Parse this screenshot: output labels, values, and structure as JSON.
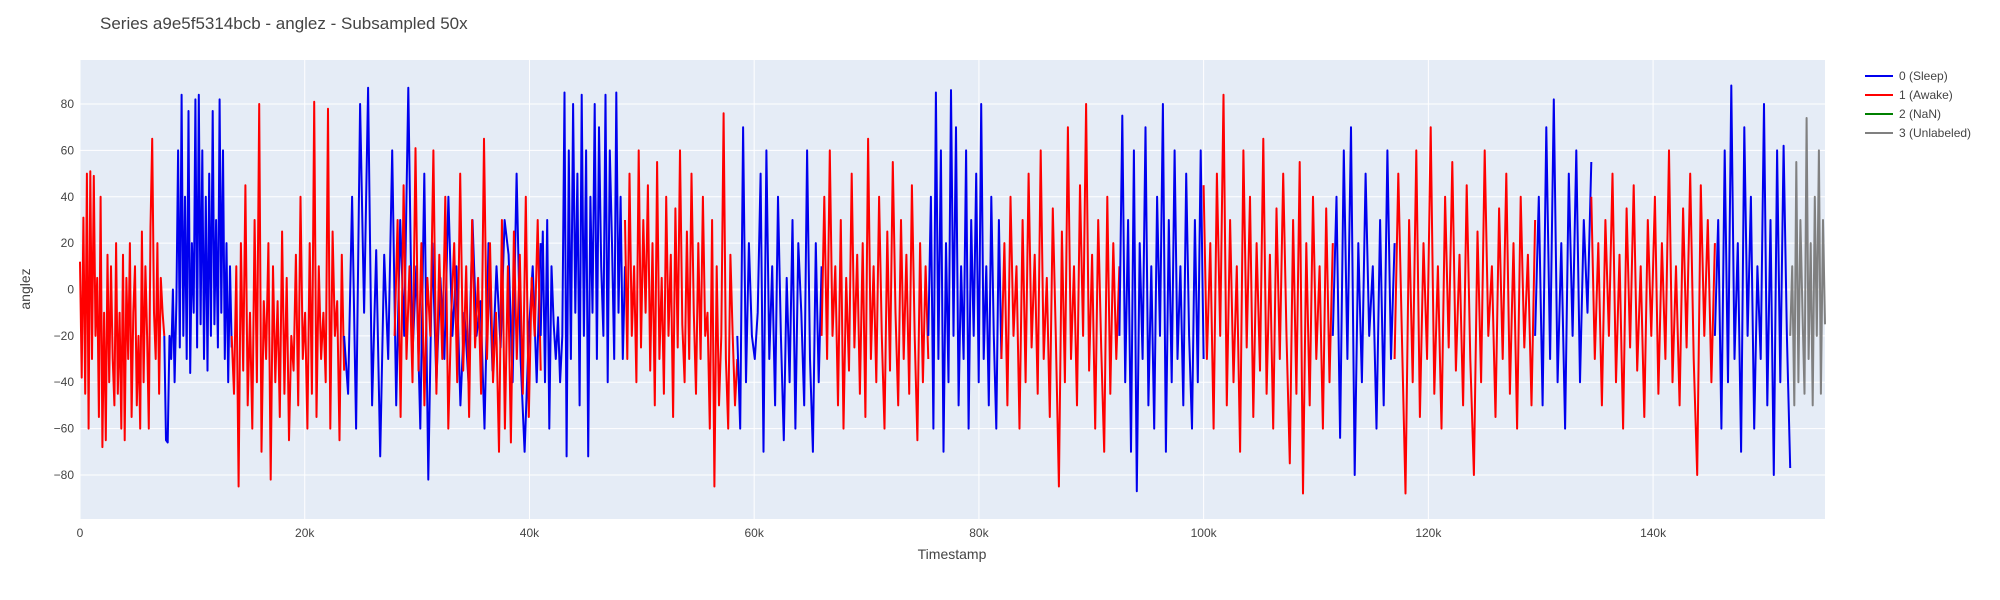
{
  "chart_data": {
    "type": "line",
    "title": "Series a9e5f5314bcb - anglez - Subsampled 50x",
    "xlabel": "Timestamp",
    "ylabel": "anglez",
    "xlim": [
      0,
      155300
    ],
    "ylim": [
      -99,
      99
    ],
    "x_ticks": [
      0,
      20000,
      40000,
      60000,
      80000,
      100000,
      120000,
      140000
    ],
    "x_tick_labels": [
      "0",
      "20k",
      "40k",
      "60k",
      "80k",
      "100k",
      "120k",
      "140k"
    ],
    "y_ticks": [
      -80,
      -60,
      -40,
      -20,
      0,
      20,
      40,
      60,
      80
    ],
    "y_tick_labels": [
      "−80",
      "−60",
      "−40",
      "−20",
      "0",
      "20",
      "40",
      "60",
      "80"
    ],
    "grid": true,
    "legend_position": "top-right-outside",
    "series": [
      {
        "name": "0 (Sleep)",
        "color": "#0000ee"
      },
      {
        "name": "1 (Awake)",
        "color": "#ff0000"
      },
      {
        "name": "2 (NaN)",
        "color": "#008000"
      },
      {
        "name": "3 (Unlabeled)",
        "color": "#808080"
      }
    ],
    "segments": [
      {
        "series": 1,
        "x_start": 0,
        "x_end": 7500,
        "y": [
          12,
          -38,
          31,
          -45,
          50,
          -60,
          51,
          -30,
          49,
          -20,
          5,
          -55,
          40,
          -68,
          -10,
          -65,
          15,
          -40,
          10,
          -30,
          -50,
          20,
          -45,
          -10,
          -60,
          15,
          -65,
          5,
          -30,
          20,
          -55,
          -10,
          10,
          -50,
          -20,
          -60,
          25,
          -40,
          10,
          -20,
          -60,
          27,
          65,
          -10,
          -30,
          20,
          -45,
          5,
          -10,
          -20
        ]
      },
      {
        "series": 0,
        "x_start": 7500,
        "x_end": 13500,
        "y": [
          -20,
          -65,
          -66,
          -20,
          -30,
          0,
          -40,
          -5,
          60,
          -25,
          84,
          -20,
          40,
          -30,
          77,
          -36,
          20,
          -10,
          82,
          -25,
          84,
          -15,
          60,
          -30,
          40,
          -35,
          50,
          -20,
          77,
          -15,
          30,
          -25,
          82,
          -10,
          60,
          -30,
          20,
          -40,
          10,
          -25
        ]
      },
      {
        "series": 1,
        "x_start": 13500,
        "x_end": 23500,
        "y": [
          -20,
          -45,
          10,
          -85,
          20,
          -35,
          45,
          -50,
          -10,
          -60,
          30,
          -40,
          80,
          -70,
          -5,
          -30,
          20,
          -82,
          10,
          -40,
          -5,
          -55,
          25,
          -45,
          5,
          -65,
          -20,
          -35,
          15,
          -50,
          40,
          -30,
          -10,
          -60,
          20,
          -45,
          81,
          -55,
          10,
          -30,
          -10,
          -40,
          78,
          -60,
          25,
          -20,
          -5,
          -65,
          15,
          -35
        ]
      },
      {
        "series": 0,
        "x_start": 23500,
        "x_end": 41000,
        "y": [
          -20,
          -45,
          40,
          -60,
          80,
          -10,
          87,
          -50,
          17,
          -72,
          15,
          -30,
          60,
          -50,
          30,
          -20,
          87,
          -30,
          10,
          -60,
          50,
          -82,
          20,
          -40,
          5,
          -30,
          40,
          -20,
          10,
          -50,
          -10,
          -40,
          30,
          -20,
          -5,
          -60,
          20,
          -35,
          10,
          -25,
          30,
          15,
          -40,
          50,
          -30,
          -70,
          -20,
          10,
          -40,
          20
        ]
      },
      {
        "series": 1,
        "x_start": 28000,
        "x_end": 41000,
        "y": [
          -20,
          30,
          -55,
          45,
          -30,
          10,
          -40,
          61,
          -35,
          20,
          -50,
          5,
          -20,
          60,
          -45,
          15,
          -30,
          40,
          -60,
          -10,
          20,
          -40,
          50,
          -35,
          10,
          -55,
          30,
          -25,
          5,
          -45,
          65,
          -30,
          20,
          -40,
          -10,
          -70,
          30,
          -60,
          10,
          -66,
          25,
          -30,
          15,
          -45,
          40,
          -55,
          5,
          -20,
          30,
          -35
        ]
      },
      {
        "series": 0,
        "x_start": 41000,
        "x_end": 48500,
        "y": [
          -20,
          25,
          -40,
          30,
          -60,
          10,
          -15,
          -30,
          -12,
          -40,
          -20,
          85,
          -72,
          60,
          -30,
          80,
          -10,
          50,
          -50,
          84,
          -20,
          60,
          -72,
          40,
          -10,
          80,
          -30,
          70,
          10,
          -20,
          84,
          -40,
          60,
          20,
          -30,
          85,
          -10,
          40,
          -30,
          10
        ]
      },
      {
        "series": 1,
        "x_start": 48500,
        "x_end": 58500,
        "y": [
          30,
          -30,
          50,
          -20,
          10,
          -40,
          60,
          -25,
          30,
          -10,
          45,
          -35,
          20,
          -50,
          55,
          -30,
          5,
          -45,
          40,
          -20,
          15,
          -55,
          35,
          -25,
          60,
          -15,
          -40,
          25,
          -30,
          50,
          -10,
          -45,
          20,
          -30,
          40,
          -20,
          -10,
          -60,
          30,
          -85,
          10,
          -50,
          -20,
          76,
          -30,
          -60,
          15,
          -20,
          -50,
          -30
        ]
      },
      {
        "series": 0,
        "x_start": 58500,
        "x_end": 66000,
        "y": [
          -20,
          -60,
          70,
          -40,
          20,
          -20,
          -30,
          -10,
          50,
          -70,
          60,
          -30,
          10,
          -50,
          40,
          -20,
          -65,
          5,
          -40,
          30,
          -60,
          20,
          -10,
          -50,
          60,
          -30,
          -70,
          20,
          -40,
          10
        ]
      },
      {
        "series": 1,
        "x_start": 66000,
        "x_end": 75500,
        "y": [
          -20,
          40,
          -30,
          60,
          -20,
          10,
          -50,
          30,
          -60,
          5,
          -35,
          50,
          -25,
          15,
          -45,
          20,
          -55,
          65,
          -30,
          10,
          -40,
          40,
          -20,
          -60,
          25,
          -35,
          55,
          -10,
          -50,
          30,
          -30,
          15,
          -45,
          45,
          -20,
          -65,
          20,
          -40,
          10,
          -30
        ]
      },
      {
        "series": 0,
        "x_start": 75500,
        "x_end": 82000,
        "y": [
          -20,
          40,
          -60,
          85,
          -30,
          60,
          -70,
          20,
          -40,
          86,
          -20,
          70,
          -50,
          10,
          -30,
          60,
          -60,
          30,
          -20,
          50,
          -40,
          80,
          -30,
          10,
          -50,
          40,
          -20,
          -60,
          30,
          -30
        ]
      },
      {
        "series": 1,
        "x_start": 82000,
        "x_end": 92500,
        "y": [
          -30,
          20,
          -50,
          40,
          -20,
          10,
          -60,
          30,
          -40,
          50,
          -25,
          15,
          -45,
          60,
          -30,
          5,
          -55,
          35,
          -20,
          -85,
          25,
          -40,
          70,
          -30,
          10,
          -50,
          45,
          -20,
          80,
          -35,
          15,
          -60,
          30,
          -25,
          -70,
          40,
          -45,
          20,
          -30,
          10
        ]
      },
      {
        "series": 0,
        "x_start": 92500,
        "x_end": 100000,
        "y": [
          -20,
          75,
          -40,
          30,
          -70,
          60,
          -87,
          20,
          -30,
          70,
          -50,
          10,
          -60,
          40,
          -20,
          80,
          -70,
          30,
          -40,
          60,
          -30,
          10,
          -50,
          50,
          -20,
          -60,
          30,
          -40,
          60,
          -30
        ]
      },
      {
        "series": 1,
        "x_start": 100000,
        "x_end": 111500,
        "y": [
          45,
          -30,
          20,
          -60,
          50,
          -20,
          84,
          -50,
          30,
          -40,
          10,
          -70,
          60,
          -25,
          40,
          -55,
          20,
          -35,
          65,
          -45,
          15,
          -60,
          35,
          -30,
          50,
          -20,
          -75,
          30,
          -45,
          55,
          -88,
          20,
          -50,
          40,
          -30,
          10,
          -60,
          35,
          -40,
          20
        ]
      },
      {
        "series": 0,
        "x_start": 111500,
        "x_end": 117000,
        "y": [
          -20,
          40,
          -64,
          60,
          -30,
          70,
          -80,
          20,
          -40,
          50,
          -20,
          10,
          -60,
          30,
          -50,
          60,
          -30,
          20
        ]
      },
      {
        "series": 1,
        "x_start": 117000,
        "x_end": 129500,
        "y": [
          -30,
          50,
          -20,
          -88,
          30,
          -40,
          60,
          -55,
          20,
          -30,
          70,
          -45,
          10,
          -60,
          40,
          -25,
          55,
          -35,
          15,
          -50,
          45,
          -30,
          -80,
          25,
          -40,
          60,
          -20,
          10,
          -55,
          35,
          -30,
          50,
          -45,
          20,
          -60,
          40,
          -25,
          15,
          -50,
          30
        ]
      },
      {
        "series": 0,
        "x_start": 129500,
        "x_end": 134500,
        "y": [
          -20,
          40,
          -50,
          70,
          -30,
          82,
          -40,
          20,
          -60,
          50,
          -20,
          60,
          -40,
          30,
          -10,
          55
        ]
      },
      {
        "series": 1,
        "x_start": 134500,
        "x_end": 145500,
        "y": [
          40,
          -30,
          20,
          -50,
          30,
          -20,
          50,
          -40,
          15,
          -60,
          35,
          -25,
          45,
          -35,
          10,
          -55,
          30,
          -20,
          40,
          -45,
          20,
          -30,
          60,
          -40,
          10,
          -50,
          35,
          -25,
          50,
          -30,
          -80,
          45,
          -20,
          30,
          -40,
          20
        ]
      },
      {
        "series": 0,
        "x_start": 145500,
        "x_end": 152200,
        "y": [
          -20,
          30,
          -60,
          60,
          -40,
          88,
          -30,
          20,
          -70,
          70,
          -20,
          40,
          -60,
          10,
          -30,
          80,
          -50,
          30,
          -80,
          60,
          -40,
          62,
          -20,
          -77
        ]
      },
      {
        "series": 3,
        "x_start": 152200,
        "x_end": 155300,
        "y": [
          -20,
          10,
          -50,
          55,
          -40,
          30,
          -10,
          -45,
          74,
          -30,
          20,
          -50,
          40,
          -20,
          60,
          -45,
          30,
          -15
        ]
      }
    ]
  }
}
